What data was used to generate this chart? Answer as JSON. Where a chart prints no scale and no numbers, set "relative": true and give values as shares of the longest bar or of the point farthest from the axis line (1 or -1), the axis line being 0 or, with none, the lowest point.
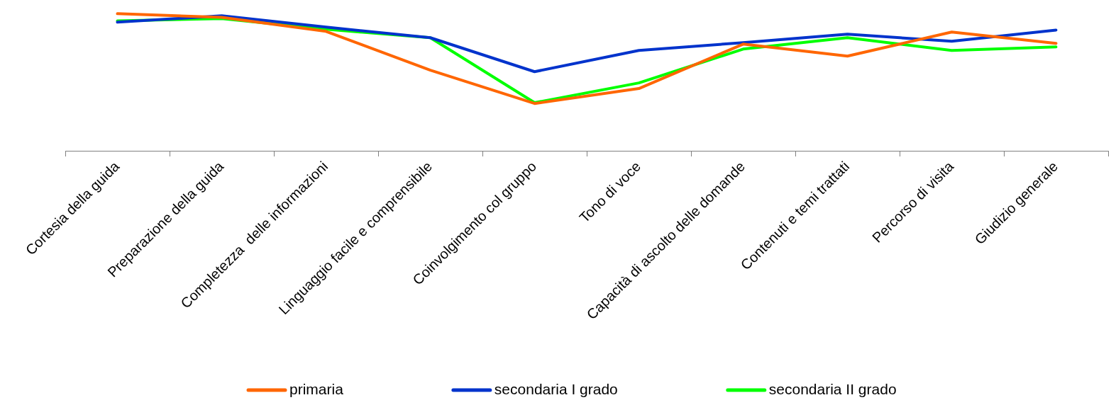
{
  "chart_data": {
    "type": "line",
    "relative": true,
    "categories": [
      "Cortesia della guida",
      "Preparazione della guida",
      "Completezza  delle informazioni",
      "Linguaggio facile e comprensibile",
      "Coinvolgimento col gruppo",
      "Tono di voce",
      "Capacità di ascolto delle domande",
      "Contenuti e temi trattati",
      "Percorso di visita",
      "Giudizio generale"
    ],
    "series": [
      {
        "name": "primaria",
        "color": "#ff6600",
        "values": [
          1,
          0.974,
          0.871,
          0.588,
          0.345,
          0.454,
          0.778,
          0.691,
          0.866,
          0.784
        ]
      },
      {
        "name": "secondaria I grado",
        "color": "#0033cc",
        "values": [
          0.938,
          0.985,
          0.902,
          0.825,
          0.577,
          0.732,
          0.789,
          0.851,
          0.799,
          0.881
        ]
      },
      {
        "name": "secondaria II grado",
        "color": "#00ff00",
        "values": [
          0.948,
          0.964,
          0.887,
          0.825,
          0.351,
          0.495,
          0.742,
          0.825,
          0.732,
          0.758
        ]
      }
    ],
    "legend": "bottom",
    "grid": false,
    "marker": "none",
    "line_style": "solid"
  }
}
